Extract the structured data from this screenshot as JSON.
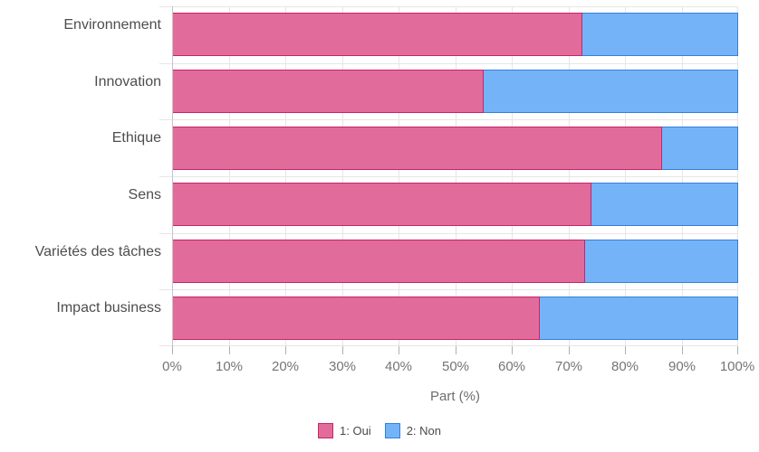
{
  "colors": {
    "oui_fill": "#e16c9c",
    "oui_border": "#c92364",
    "non_fill": "#75b3f8",
    "non_border": "#3580d8",
    "gridline": "#e6e6e6",
    "axis_line": "#c4c4c4",
    "tick": "#b0b0b0",
    "tick_label": "#757575",
    "category_label": "#4d4d4d",
    "axis_title": "#6e6e6e",
    "legend_text": "#4a4a4a",
    "background": "#ffffff"
  },
  "chart_data": {
    "type": "bar",
    "orientation": "horizontal",
    "stacked": true,
    "categories": [
      "Environnement",
      "Innovation",
      "Ethique",
      "Sens",
      "Variétés des tâches",
      "Impact business"
    ],
    "series": [
      {
        "name": "1: Oui",
        "values": [
          72.5,
          55,
          86.5,
          74,
          73,
          65
        ]
      },
      {
        "name": "2: Non",
        "values": [
          27.5,
          45,
          13.5,
          26,
          27,
          35
        ]
      }
    ],
    "title": "",
    "xlabel": "Part (%)",
    "ylabel": "",
    "xlim": [
      0,
      100
    ],
    "x_ticks": [
      "0%",
      "10%",
      "20%",
      "30%",
      "40%",
      "50%",
      "60%",
      "70%",
      "80%",
      "90%",
      "100%"
    ],
    "grid": true,
    "legend_position": "bottom"
  }
}
